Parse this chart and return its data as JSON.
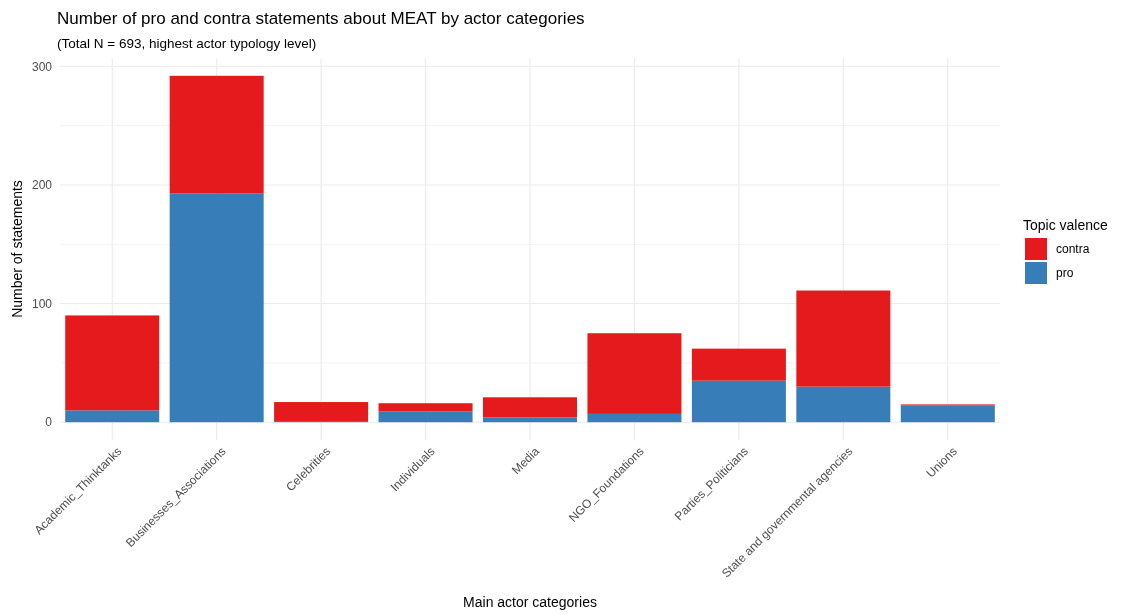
{
  "chart_data": {
    "type": "bar",
    "title": "Number of pro and contra statements about MEAT by actor categories",
    "subtitle": "(Total N = 693, highest actor typology level)",
    "xlabel": "Main actor categories",
    "ylabel": "Number of statements",
    "legend_title": "Topic valence",
    "categories": [
      "Academic_Thinktanks",
      "Businesses_Associations",
      "Celebrities",
      "Individuals",
      "Media",
      "NGO_Foundations",
      "Parties_Politicians",
      "State and governmental agencies",
      "Unions"
    ],
    "series": [
      {
        "name": "pro",
        "color": "#377eb8",
        "values": [
          10,
          193,
          1,
          9,
          4,
          7,
          35,
          30,
          14
        ]
      },
      {
        "name": "contra",
        "color": "#e41a1c",
        "values": [
          80,
          99,
          16,
          7,
          17,
          68,
          27,
          81,
          1
        ]
      }
    ],
    "stacked": true,
    "ylim": [
      -15,
      307
    ],
    "yticks": [
      0,
      {
        "value": 50,
        "label": null
      },
      100,
      {
        "value": 150,
        "label": null
      },
      200,
      {
        "value": 250,
        "label": null
      },
      300
    ],
    "grid": true,
    "legend": "right"
  }
}
